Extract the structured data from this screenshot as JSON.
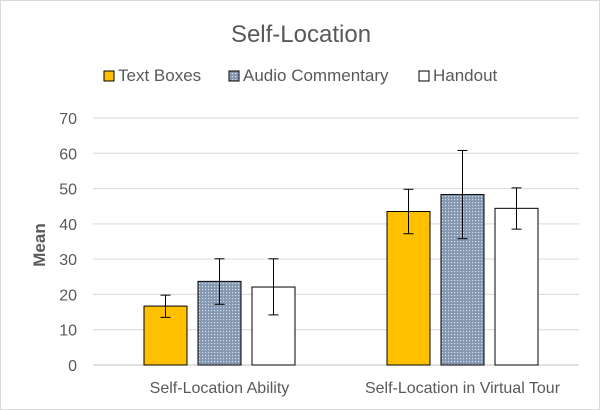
{
  "chart_data": {
    "type": "bar",
    "title": "Self-Location",
    "xlabel": "",
    "ylabel": "Mean",
    "ylim": [
      0,
      70
    ],
    "yticks": [
      0,
      10,
      20,
      30,
      40,
      50,
      60,
      70
    ],
    "grid": true,
    "legend_position": "top",
    "categories": [
      "Self-Location Ability",
      "Self-Location in Virtual Tour"
    ],
    "series": [
      {
        "name": "Text Boxes",
        "color": "#FFC000",
        "pattern": "solid",
        "values": [
          16.7,
          43.5
        ],
        "error_low": [
          13.5,
          37.2
        ],
        "error_high": [
          19.8,
          49.8
        ]
      },
      {
        "name": "Audio Commentary",
        "color": "#8497B0",
        "pattern": "dotted",
        "values": [
          23.7,
          48.3
        ],
        "error_low": [
          17.2,
          35.8
        ],
        "error_high": [
          30.1,
          60.8
        ]
      },
      {
        "name": "Handout",
        "color": "#FFFFFF",
        "pattern": "solid",
        "values": [
          22.1,
          44.4
        ],
        "error_low": [
          14.2,
          38.5
        ],
        "error_high": [
          30.1,
          50.2
        ]
      }
    ]
  }
}
